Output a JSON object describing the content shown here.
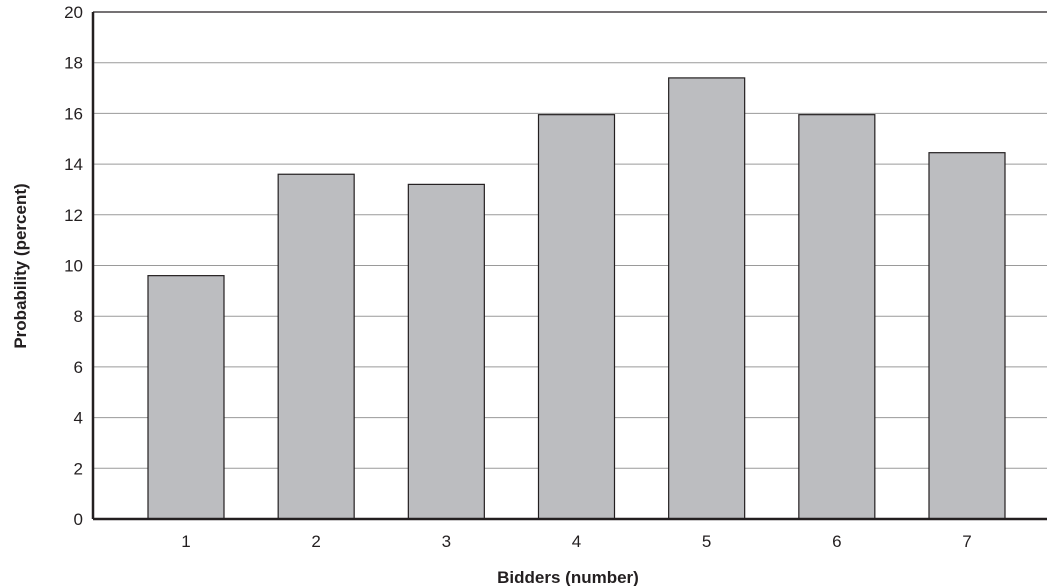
{
  "chart_data": {
    "type": "bar",
    "categories": [
      "1",
      "2",
      "3",
      "4",
      "5",
      "6",
      "7"
    ],
    "values": [
      9.6,
      13.6,
      13.2,
      15.95,
      17.4,
      15.95,
      14.45
    ],
    "xlabel": "Bidders (number)",
    "ylabel": "Probability (percent)",
    "ylim": [
      0,
      20
    ],
    "yticks": [
      "0",
      "2",
      "4",
      "6",
      "8",
      "10",
      "12",
      "14",
      "16",
      "18",
      "20"
    ],
    "grid": true,
    "colors": {
      "bar_fill": "#bcbdc0",
      "bar_stroke": "#231f20",
      "grid": "#9a9a9a",
      "axis": "#231f20"
    }
  }
}
